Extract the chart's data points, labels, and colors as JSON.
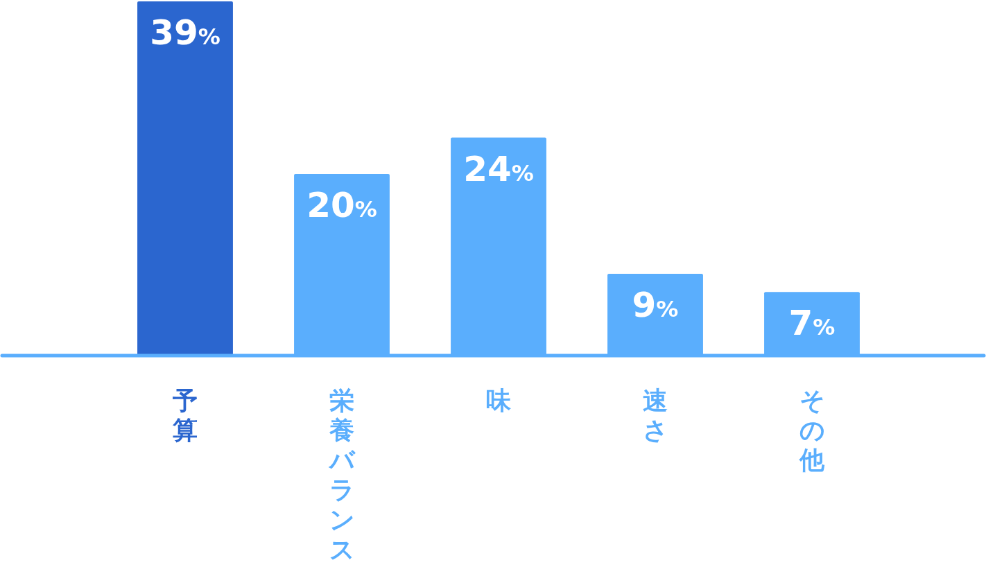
{
  "chart_data": {
    "type": "bar",
    "categories": [
      "予算",
      "栄養バランス",
      "味",
      "速さ",
      "その他"
    ],
    "values": [
      39,
      20,
      24,
      9,
      7
    ],
    "colors": [
      "#2b66cf",
      "#5aaefd",
      "#5aaefd",
      "#5aaefd",
      "#5aaefd"
    ],
    "value_labels": [
      "39%",
      "20%",
      "24%",
      "9%",
      "7%"
    ]
  }
}
